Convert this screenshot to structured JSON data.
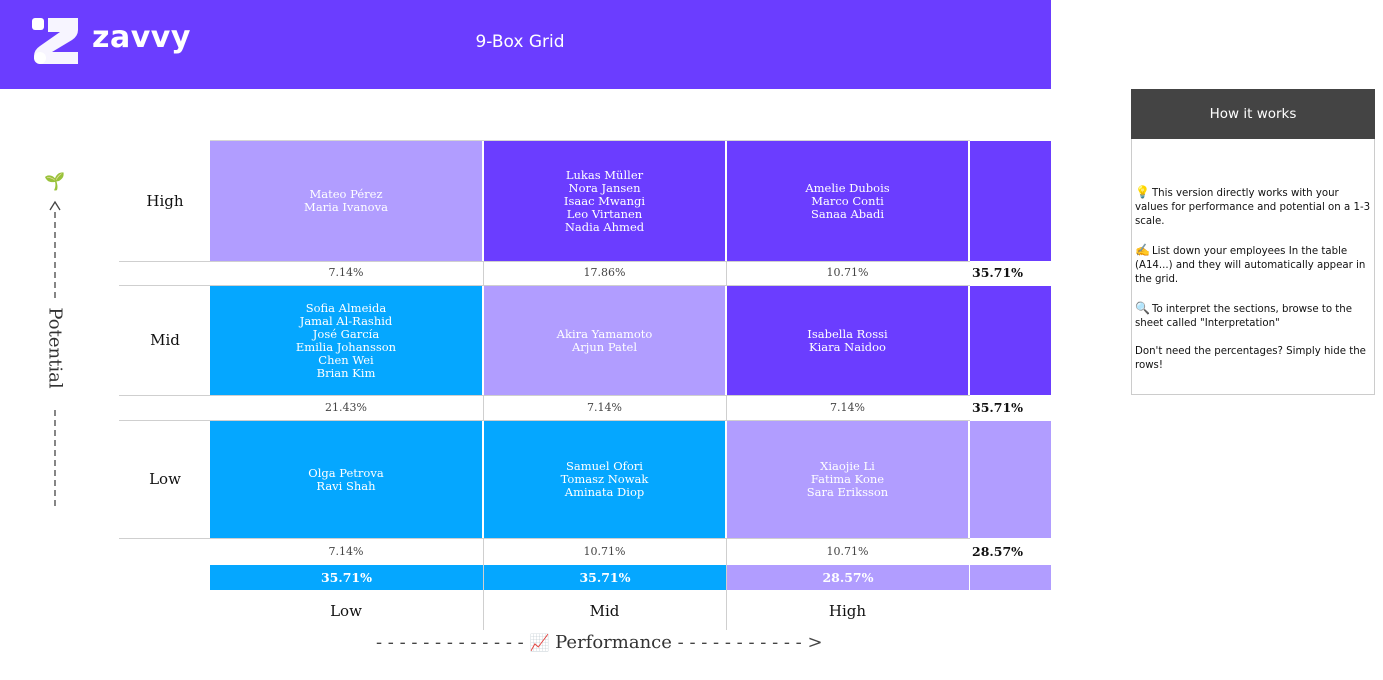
{
  "header": {
    "logo_text": "zavvy",
    "title": "9-Box Grid",
    "background": "#6b3dff"
  },
  "grid": {
    "row_labels": [
      "High",
      "Mid",
      "Low"
    ],
    "col_labels": [
      "Low",
      "Mid",
      "High"
    ],
    "rows": [
      {
        "label": "High",
        "cells": [
          {
            "names": [
              "Mateo Pérez",
              "Maria Ivanova"
            ],
            "color": "#b19dff",
            "pct": "7.14%"
          },
          {
            "names": [
              "Lukas Müller",
              "Nora Jansen",
              "Isaac Mwangi",
              "Leo Virtanen",
              "Nadia Ahmed"
            ],
            "color": "#6b3dff",
            "pct": "17.86%"
          },
          {
            "names": [
              "Amelie Dubois",
              "Marco Conti",
              "Sanaa Abadi"
            ],
            "color": "#6b3dff",
            "pct": "10.71%"
          }
        ],
        "row_total": "35.71%",
        "edge_color": "#6b3dff"
      },
      {
        "label": "Mid",
        "cells": [
          {
            "names": [
              "Sofia Almeida",
              "Jamal Al-Rashid",
              "José García",
              "Emilia Johansson",
              "Chen Wei",
              "Brian Kim"
            ],
            "color": "#05a7ff",
            "pct": "21.43%"
          },
          {
            "names": [
              "Akira Yamamoto",
              "Arjun Patel"
            ],
            "color": "#b19dff",
            "pct": "7.14%"
          },
          {
            "names": [
              "Isabella Rossi",
              "Kiara Naidoo"
            ],
            "color": "#6b3dff",
            "pct": "7.14%"
          }
        ],
        "row_total": "35.71%",
        "edge_color": "#6b3dff"
      },
      {
        "label": "Low",
        "cells": [
          {
            "names": [
              "Olga Petrova",
              "Ravi Shah"
            ],
            "color": "#05a7ff",
            "pct": "7.14%"
          },
          {
            "names": [
              "Samuel Ofori",
              "Tomasz Nowak",
              "Aminata Diop"
            ],
            "color": "#05a7ff",
            "pct": "10.71%"
          },
          {
            "names": [
              "Xiaojie Li",
              "Fatima Kone",
              "Sara Eriksson"
            ],
            "color": "#b19dff",
            "pct": "10.71%"
          }
        ],
        "row_total": "28.57%",
        "edge_color": "#b19dff"
      }
    ],
    "col_totals": [
      {
        "value": "35.71%",
        "color": "#05a7ff"
      },
      {
        "value": "35.71%",
        "color": "#05a7ff"
      },
      {
        "value": "28.57%",
        "color": "#b19dff"
      }
    ],
    "corner_color": "#b19dff"
  },
  "axes": {
    "performance": "Performance",
    "performance_icon": "📈",
    "potential": "Potential",
    "potential_icon": "🌱"
  },
  "how_it_works": {
    "title": "How it works",
    "paragraphs": [
      {
        "icon": "💡",
        "text": "This version directly works with your values for performance and potential on a 1-3 scale."
      },
      {
        "icon": "✍️",
        "text": "List down your employees In the table (A14...) and they will automatically appear in the grid."
      },
      {
        "icon": "🔍",
        "text": "To interpret the sections, browse to the sheet called \"Interpretation\""
      },
      {
        "icon": "",
        "text": "Don't need the percentages? Simply hide the rows!"
      }
    ]
  }
}
